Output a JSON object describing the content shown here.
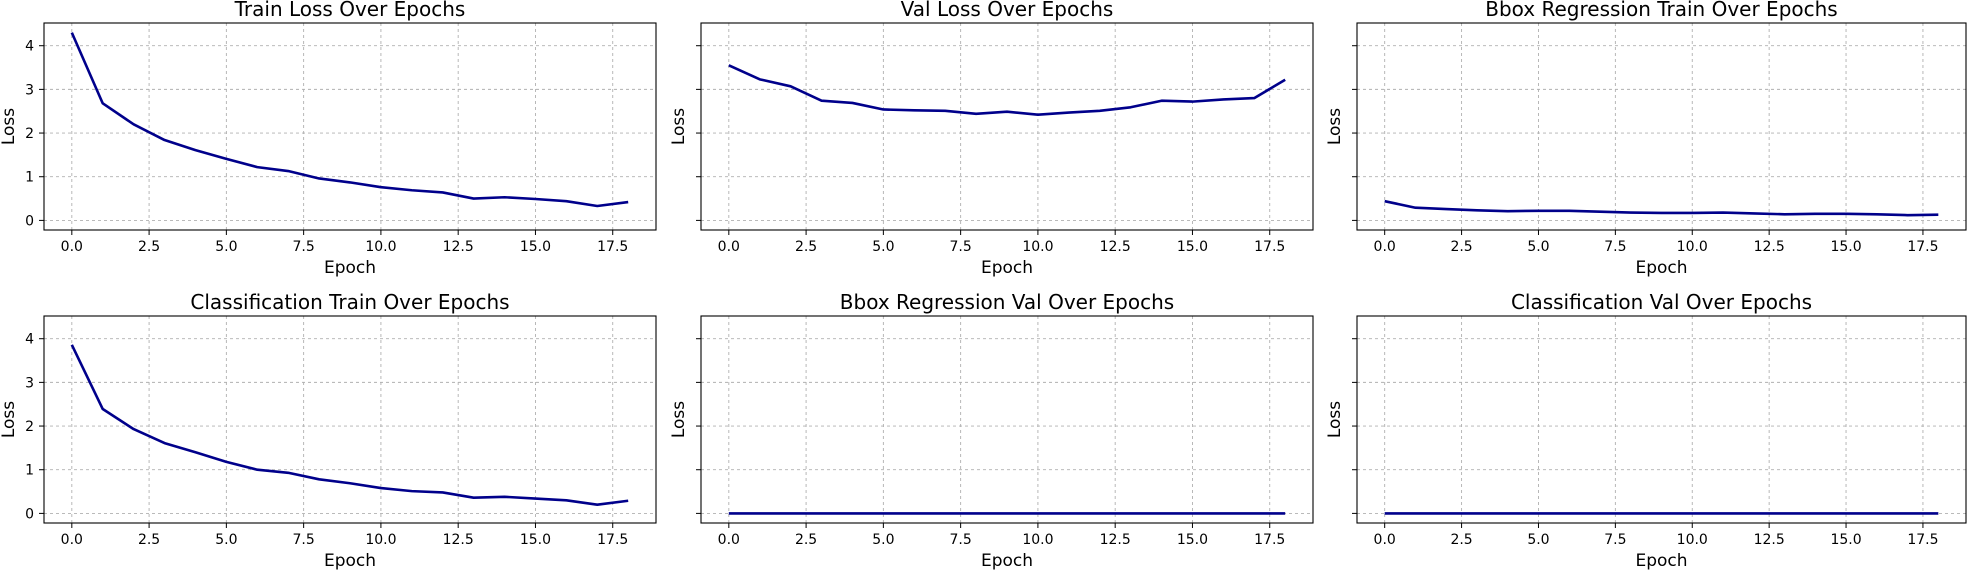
{
  "chart_data": [
    {
      "type": "line",
      "title": "Train Loss Over Epochs",
      "xlabel": "Epoch",
      "ylabel": "Loss",
      "xlim": [
        -0.9,
        18.9
      ],
      "ylim": [
        -0.22,
        4.52
      ],
      "xticks": [
        "0.0",
        "2.5",
        "5.0",
        "7.5",
        "10.0",
        "12.5",
        "15.0",
        "17.5"
      ],
      "yticks": [
        "0",
        "1",
        "2",
        "3",
        "4"
      ],
      "show_yticklabels": true,
      "grid": true,
      "color": "#00008b",
      "x": [
        0,
        1,
        2,
        3,
        4,
        5,
        6,
        7,
        8,
        9,
        10,
        11,
        12,
        13,
        14,
        15,
        16,
        17,
        18
      ],
      "values": [
        4.3,
        2.68,
        2.2,
        1.84,
        1.61,
        1.41,
        1.22,
        1.13,
        0.96,
        0.87,
        0.76,
        0.69,
        0.64,
        0.5,
        0.53,
        0.49,
        0.44,
        0.33,
        0.42
      ]
    },
    {
      "type": "line",
      "title": "Val Loss Over Epochs",
      "xlabel": "Epoch",
      "ylabel": "Loss",
      "xlim": [
        -0.9,
        18.9
      ],
      "ylim": [
        -0.22,
        4.52
      ],
      "xticks": [
        "0.0",
        "2.5",
        "5.0",
        "7.5",
        "10.0",
        "12.5",
        "15.0",
        "17.5"
      ],
      "yticks": [
        "0",
        "1",
        "2",
        "3",
        "4"
      ],
      "show_yticklabels": false,
      "grid": true,
      "color": "#00008b",
      "x": [
        0,
        1,
        2,
        3,
        4,
        5,
        6,
        7,
        8,
        9,
        10,
        11,
        12,
        13,
        14,
        15,
        16,
        17,
        18
      ],
      "values": [
        3.55,
        3.23,
        3.07,
        2.74,
        2.69,
        2.54,
        2.52,
        2.51,
        2.44,
        2.49,
        2.42,
        2.47,
        2.51,
        2.59,
        2.74,
        2.72,
        2.77,
        2.8,
        3.22
      ]
    },
    {
      "type": "line",
      "title": "Bbox Regression Train Over Epochs",
      "xlabel": "Epoch",
      "ylabel": "Loss",
      "xlim": [
        -0.9,
        18.9
      ],
      "ylim": [
        -0.22,
        4.52
      ],
      "xticks": [
        "0.0",
        "2.5",
        "5.0",
        "7.5",
        "10.0",
        "12.5",
        "15.0",
        "17.5"
      ],
      "yticks": [
        "0",
        "1",
        "2",
        "3",
        "4"
      ],
      "show_yticklabels": false,
      "grid": true,
      "color": "#00008b",
      "x": [
        0,
        1,
        2,
        3,
        4,
        5,
        6,
        7,
        8,
        9,
        10,
        11,
        12,
        13,
        14,
        15,
        16,
        17,
        18
      ],
      "values": [
        0.44,
        0.29,
        0.26,
        0.23,
        0.21,
        0.22,
        0.22,
        0.2,
        0.18,
        0.17,
        0.17,
        0.18,
        0.16,
        0.14,
        0.15,
        0.15,
        0.14,
        0.12,
        0.13
      ]
    },
    {
      "type": "line",
      "title": "Classification Train Over Epochs",
      "xlabel": "Epoch",
      "ylabel": "Loss",
      "xlim": [
        -0.9,
        18.9
      ],
      "ylim": [
        -0.22,
        4.52
      ],
      "xticks": [
        "0.0",
        "2.5",
        "5.0",
        "7.5",
        "10.0",
        "12.5",
        "15.0",
        "17.5"
      ],
      "yticks": [
        "0",
        "1",
        "2",
        "3",
        "4"
      ],
      "show_yticklabels": true,
      "grid": true,
      "color": "#00008b",
      "x": [
        0,
        1,
        2,
        3,
        4,
        5,
        6,
        7,
        8,
        9,
        10,
        11,
        12,
        13,
        14,
        15,
        16,
        17,
        18
      ],
      "values": [
        3.86,
        2.39,
        1.93,
        1.61,
        1.4,
        1.18,
        1.0,
        0.93,
        0.78,
        0.69,
        0.58,
        0.51,
        0.48,
        0.36,
        0.38,
        0.34,
        0.3,
        0.2,
        0.29
      ]
    },
    {
      "type": "line",
      "title": "Bbox Regression Val Over Epochs",
      "xlabel": "Epoch",
      "ylabel": "Loss",
      "xlim": [
        -0.9,
        18.9
      ],
      "ylim": [
        -0.22,
        4.52
      ],
      "xticks": [
        "0.0",
        "2.5",
        "5.0",
        "7.5",
        "10.0",
        "12.5",
        "15.0",
        "17.5"
      ],
      "yticks": [
        "0",
        "1",
        "2",
        "3",
        "4"
      ],
      "show_yticklabels": false,
      "grid": true,
      "color": "#00008b",
      "x": [
        0,
        1,
        2,
        3,
        4,
        5,
        6,
        7,
        8,
        9,
        10,
        11,
        12,
        13,
        14,
        15,
        16,
        17,
        18
      ],
      "values": [
        0,
        0,
        0,
        0,
        0,
        0,
        0,
        0,
        0,
        0,
        0,
        0,
        0,
        0,
        0,
        0,
        0,
        0,
        0
      ]
    },
    {
      "type": "line",
      "title": "Classification Val Over Epochs",
      "xlabel": "Epoch",
      "ylabel": "Loss",
      "xlim": [
        -0.9,
        18.9
      ],
      "ylim": [
        -0.22,
        4.52
      ],
      "xticks": [
        "0.0",
        "2.5",
        "5.0",
        "7.5",
        "10.0",
        "12.5",
        "15.0",
        "17.5"
      ],
      "yticks": [
        "0",
        "1",
        "2",
        "3",
        "4"
      ],
      "show_yticklabels": false,
      "grid": true,
      "color": "#00008b",
      "x": [
        0,
        1,
        2,
        3,
        4,
        5,
        6,
        7,
        8,
        9,
        10,
        11,
        12,
        13,
        14,
        15,
        16,
        17,
        18
      ],
      "values": [
        0,
        0,
        0,
        0,
        0,
        0,
        0,
        0,
        0,
        0,
        0,
        0,
        0,
        0,
        0,
        0,
        0,
        0,
        0
      ]
    }
  ]
}
